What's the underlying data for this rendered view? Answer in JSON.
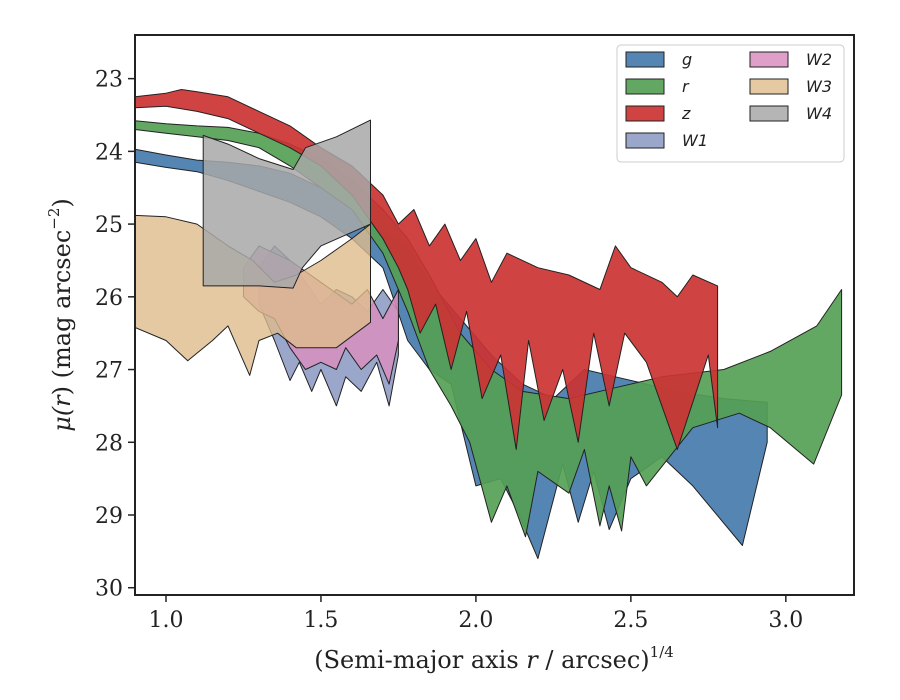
{
  "chart_data": {
    "type": "area",
    "title": "",
    "xlabel": "(Semi-major axis r / arcsec)",
    "xlabel_main": "(Semi-major axis ",
    "xlabel_var": "r",
    "xlabel_tail": " / arcsec)",
    "xlabel_sup": "1/4",
    "ylabel": "μ(r) (mag arcsec−2)",
    "ylabel_mu": "μ(",
    "ylabel_var": "r",
    "ylabel_mid": ") (mag arcsec",
    "ylabel_sup": "−2",
    "ylabel_end": ")",
    "xlim": [
      0.9,
      3.22
    ],
    "ylim": [
      30.1,
      22.4
    ],
    "y_inverted": true,
    "x_ticks": [
      "1.0",
      "1.5",
      "2.0",
      "2.5",
      "3.0"
    ],
    "y_ticks": [
      "23",
      "24",
      "25",
      "26",
      "27",
      "28",
      "29",
      "30"
    ],
    "grid": false,
    "legend": {
      "placement": "top-right",
      "columns": 2
    },
    "series": [
      {
        "name": "g",
        "color": "#4C7FAF",
        "opacity": 0.95,
        "upper": [
          [
            0.9,
            23.97
          ],
          [
            1.0,
            24.05
          ],
          [
            1.1,
            24.12
          ],
          [
            1.2,
            24.15
          ],
          [
            1.3,
            24.2
          ],
          [
            1.4,
            24.3
          ],
          [
            1.5,
            24.5
          ],
          [
            1.6,
            24.8
          ],
          [
            1.7,
            25.1
          ],
          [
            1.78,
            25.3
          ],
          [
            1.85,
            25.8
          ],
          [
            1.95,
            26.3
          ],
          [
            2.05,
            26.8
          ],
          [
            2.15,
            27.2
          ],
          [
            2.25,
            27.4
          ],
          [
            2.35,
            27.0
          ],
          [
            2.45,
            27.1
          ],
          [
            2.55,
            27.2
          ],
          [
            2.65,
            27.3
          ],
          [
            2.8,
            27.4
          ],
          [
            2.94,
            27.45
          ]
        ],
        "lower": [
          [
            2.94,
            28.0
          ],
          [
            2.86,
            29.42
          ],
          [
            2.7,
            28.6
          ],
          [
            2.6,
            28.2
          ],
          [
            2.5,
            28.5
          ],
          [
            2.43,
            29.2
          ],
          [
            2.38,
            28.4
          ],
          [
            2.33,
            29.1
          ],
          [
            2.28,
            28.3
          ],
          [
            2.2,
            29.6
          ],
          [
            2.14,
            29.0
          ],
          [
            2.08,
            28.5
          ],
          [
            2.0,
            28.6
          ],
          [
            1.92,
            27.2
          ],
          [
            1.85,
            27.0
          ],
          [
            1.78,
            26.6
          ],
          [
            1.7,
            25.6
          ],
          [
            1.6,
            25.2
          ],
          [
            1.5,
            24.9
          ],
          [
            1.4,
            24.7
          ],
          [
            1.3,
            24.55
          ],
          [
            1.2,
            24.4
          ],
          [
            1.1,
            24.28
          ],
          [
            1.0,
            24.22
          ],
          [
            0.9,
            24.15
          ]
        ]
      },
      {
        "name": "r",
        "color": "#55A055",
        "opacity": 0.92,
        "upper": [
          [
            0.9,
            23.58
          ],
          [
            1.0,
            23.62
          ],
          [
            1.1,
            23.65
          ],
          [
            1.2,
            23.67
          ],
          [
            1.3,
            23.75
          ],
          [
            1.4,
            23.9
          ],
          [
            1.5,
            24.1
          ],
          [
            1.6,
            24.4
          ],
          [
            1.7,
            24.8
          ],
          [
            1.78,
            25.2
          ],
          [
            1.85,
            25.7
          ],
          [
            1.95,
            26.5
          ],
          [
            2.05,
            27.0
          ],
          [
            2.15,
            27.3
          ],
          [
            2.3,
            27.4
          ],
          [
            2.45,
            27.25
          ],
          [
            2.6,
            27.1
          ],
          [
            2.8,
            27.0
          ],
          [
            2.95,
            26.75
          ],
          [
            3.1,
            26.4
          ],
          [
            3.18,
            25.9
          ]
        ],
        "lower": [
          [
            3.18,
            27.35
          ],
          [
            3.09,
            28.3
          ],
          [
            2.95,
            27.8
          ],
          [
            2.85,
            27.6
          ],
          [
            2.7,
            27.8
          ],
          [
            2.55,
            28.6
          ],
          [
            2.5,
            28.2
          ],
          [
            2.47,
            29.22
          ],
          [
            2.43,
            28.6
          ],
          [
            2.4,
            29.15
          ],
          [
            2.35,
            28.1
          ],
          [
            2.3,
            28.7
          ],
          [
            2.2,
            28.4
          ],
          [
            2.16,
            29.3
          ],
          [
            2.1,
            28.6
          ],
          [
            2.05,
            29.1
          ],
          [
            1.98,
            28.0
          ],
          [
            1.92,
            27.5
          ],
          [
            1.85,
            27.0
          ],
          [
            1.78,
            26.2
          ],
          [
            1.7,
            25.4
          ],
          [
            1.6,
            24.8
          ],
          [
            1.5,
            24.5
          ],
          [
            1.4,
            24.2
          ],
          [
            1.3,
            23.95
          ],
          [
            1.2,
            23.85
          ],
          [
            1.1,
            23.8
          ],
          [
            1.0,
            23.75
          ],
          [
            0.9,
            23.7
          ]
        ]
      },
      {
        "name": "z",
        "color": "#CC3333",
        "opacity": 0.92,
        "upper": [
          [
            0.9,
            23.25
          ],
          [
            1.0,
            23.2
          ],
          [
            1.05,
            23.15
          ],
          [
            1.1,
            23.18
          ],
          [
            1.2,
            23.25
          ],
          [
            1.3,
            23.45
          ],
          [
            1.4,
            23.65
          ],
          [
            1.5,
            23.95
          ],
          [
            1.6,
            24.2
          ],
          [
            1.7,
            24.6
          ],
          [
            1.75,
            25.0
          ],
          [
            1.8,
            24.8
          ],
          [
            1.85,
            25.3
          ],
          [
            1.9,
            25.0
          ],
          [
            1.95,
            25.5
          ],
          [
            2.0,
            25.2
          ],
          [
            2.05,
            25.8
          ],
          [
            2.1,
            25.4
          ],
          [
            2.2,
            25.6
          ],
          [
            2.3,
            25.7
          ],
          [
            2.4,
            25.9
          ],
          [
            2.45,
            25.3
          ],
          [
            2.5,
            25.6
          ],
          [
            2.6,
            25.8
          ],
          [
            2.65,
            26.0
          ],
          [
            2.7,
            25.7
          ],
          [
            2.78,
            25.85
          ]
        ],
        "lower": [
          [
            2.78,
            27.8
          ],
          [
            2.75,
            26.8
          ],
          [
            2.65,
            28.1
          ],
          [
            2.55,
            26.9
          ],
          [
            2.48,
            26.5
          ],
          [
            2.43,
            27.5
          ],
          [
            2.38,
            26.5
          ],
          [
            2.33,
            28.0
          ],
          [
            2.28,
            27.0
          ],
          [
            2.22,
            27.7
          ],
          [
            2.17,
            26.6
          ],
          [
            2.13,
            28.1
          ],
          [
            2.08,
            26.8
          ],
          [
            2.02,
            27.4
          ],
          [
            1.97,
            26.2
          ],
          [
            1.92,
            27.0
          ],
          [
            1.87,
            26.1
          ],
          [
            1.82,
            26.5
          ],
          [
            1.78,
            25.9
          ],
          [
            1.75,
            25.6
          ],
          [
            1.7,
            25.2
          ],
          [
            1.6,
            24.6
          ],
          [
            1.5,
            24.2
          ],
          [
            1.4,
            23.95
          ],
          [
            1.3,
            23.75
          ],
          [
            1.2,
            23.55
          ],
          [
            1.1,
            23.45
          ],
          [
            1.0,
            23.38
          ],
          [
            0.9,
            23.4
          ]
        ]
      },
      {
        "name": "W1",
        "color": "#8A96C2",
        "opacity": 0.85,
        "upper": [
          [
            1.3,
            25.6
          ],
          [
            1.35,
            25.3
          ],
          [
            1.4,
            25.5
          ],
          [
            1.45,
            25.8
          ],
          [
            1.5,
            26.1
          ],
          [
            1.55,
            25.9
          ],
          [
            1.6,
            26.0
          ],
          [
            1.65,
            26.2
          ],
          [
            1.7,
            25.9
          ],
          [
            1.75,
            26.2
          ]
        ],
        "lower": [
          [
            1.75,
            26.8
          ],
          [
            1.72,
            27.5
          ],
          [
            1.68,
            26.9
          ],
          [
            1.63,
            27.3
          ],
          [
            1.58,
            27.1
          ],
          [
            1.55,
            27.5
          ],
          [
            1.5,
            27.0
          ],
          [
            1.47,
            27.3
          ],
          [
            1.43,
            26.9
          ],
          [
            1.4,
            27.15
          ],
          [
            1.35,
            26.6
          ],
          [
            1.3,
            26.1
          ]
        ]
      },
      {
        "name": "W2",
        "color": "#D88FC0",
        "opacity": 0.85,
        "upper": [
          [
            1.25,
            25.6
          ],
          [
            1.3,
            25.3
          ],
          [
            1.4,
            25.5
          ],
          [
            1.5,
            25.8
          ],
          [
            1.6,
            26.1
          ],
          [
            1.65,
            25.9
          ],
          [
            1.7,
            26.3
          ],
          [
            1.75,
            25.9
          ]
        ],
        "lower": [
          [
            1.75,
            26.6
          ],
          [
            1.72,
            27.2
          ],
          [
            1.68,
            26.8
          ],
          [
            1.63,
            27.0
          ],
          [
            1.58,
            26.7
          ],
          [
            1.55,
            27.0
          ],
          [
            1.5,
            26.9
          ],
          [
            1.45,
            27.0
          ],
          [
            1.4,
            26.7
          ],
          [
            1.35,
            26.3
          ],
          [
            1.3,
            26.2
          ],
          [
            1.25,
            26.0
          ]
        ]
      },
      {
        "name": "W3",
        "color": "#DDBB8C",
        "opacity": 0.8,
        "upper": [
          [
            0.9,
            24.88
          ],
          [
            1.0,
            24.9
          ],
          [
            1.1,
            25.0
          ],
          [
            1.2,
            25.3
          ],
          [
            1.28,
            25.5
          ],
          [
            1.35,
            25.8
          ],
          [
            1.42,
            25.7
          ],
          [
            1.5,
            25.5
          ],
          [
            1.6,
            25.2
          ],
          [
            1.66,
            25.0
          ]
        ],
        "lower": [
          [
            1.66,
            26.35
          ],
          [
            1.55,
            26.7
          ],
          [
            1.5,
            26.7
          ],
          [
            1.42,
            26.7
          ],
          [
            1.36,
            26.5
          ],
          [
            1.3,
            26.6
          ],
          [
            1.27,
            27.08
          ],
          [
            1.2,
            26.4
          ],
          [
            1.15,
            26.6
          ],
          [
            1.07,
            26.88
          ],
          [
            1.0,
            26.6
          ],
          [
            0.9,
            26.42
          ]
        ]
      },
      {
        "name": "W4",
        "color": "#A8A8A8",
        "opacity": 0.85,
        "upper": [
          [
            1.12,
            23.78
          ],
          [
            1.2,
            23.9
          ],
          [
            1.3,
            24.1
          ],
          [
            1.41,
            24.25
          ],
          [
            1.45,
            23.95
          ],
          [
            1.55,
            23.8
          ],
          [
            1.66,
            23.57
          ]
        ],
        "lower": [
          [
            1.66,
            25.0
          ],
          [
            1.5,
            25.3
          ],
          [
            1.44,
            25.6
          ],
          [
            1.41,
            25.88
          ],
          [
            1.3,
            25.85
          ],
          [
            1.2,
            25.85
          ],
          [
            1.12,
            25.85
          ]
        ]
      }
    ]
  }
}
